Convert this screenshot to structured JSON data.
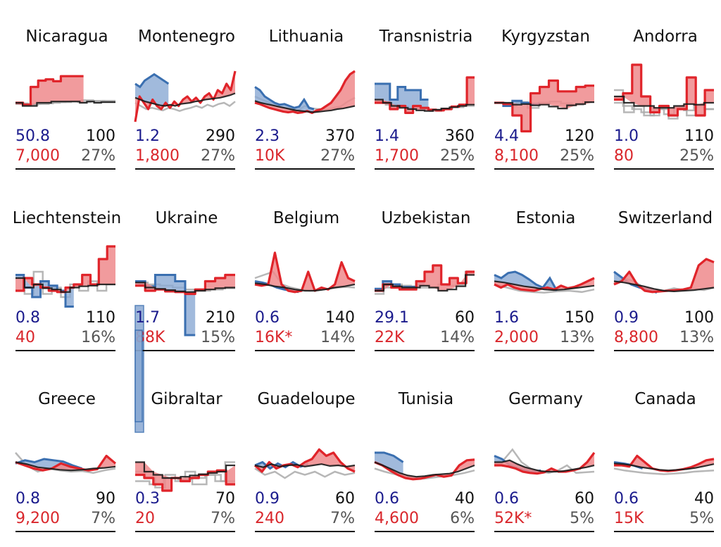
{
  "colors": {
    "blue": "#3a6fb0",
    "blue_fill": "#8aa9d3",
    "red": "#e0242a",
    "red_fill": "#ee8a8c",
    "black": "#1a1a1a",
    "gray": "#aaaaaa",
    "blue_text": "#1a1a8c",
    "red_text": "#d9262b",
    "pct_text": "#555555"
  },
  "chart_data": {
    "type": "small-multiples-line",
    "title": "",
    "panels": [
      {
        "name": "Nicaragua",
        "blue_value": "50.8",
        "black_value": "100",
        "red_value": "7,000",
        "pct": "27%",
        "style": "step",
        "red": [
          0,
          -0.3,
          2.5,
          3.5,
          3.7,
          3.4,
          4.2,
          4.2,
          4.2
        ],
        "black": [
          0,
          -0.5,
          -0.5,
          0,
          0,
          0.2,
          0.2,
          0.2,
          0.2,
          0,
          0.2,
          0,
          0.1,
          0.1
        ],
        "blue": [],
        "gray": [
          [
            -0.2,
            -0.3,
            -0.2,
            0,
            0.1,
            0.3,
            0.4,
            0.3,
            0.2
          ],
          [
            -0.1,
            -0.2,
            -0.1,
            0.1,
            0.2,
            0.1,
            0.2,
            0.3
          ]
        ]
      },
      {
        "name": "Montenegro",
        "blue_value": "1.2",
        "black_value": "290",
        "red_value": "1,800",
        "pct": "27%",
        "style": "line",
        "red": [
          -3,
          1,
          0,
          -1,
          0.5,
          -0.5,
          -1,
          0,
          -0.8,
          0.2,
          -0.5,
          0.5,
          1,
          0.2,
          0.8,
          0,
          1,
          1.5,
          0.5,
          2,
          1.5,
          3,
          2,
          5
        ],
        "black": [
          0.8,
          0.5,
          0.2,
          0,
          -0.2,
          -0.4,
          -0.5,
          -0.3,
          -0.5,
          -0.2,
          -0.1,
          0,
          0.2,
          0.3,
          0.5,
          0.6,
          0.7,
          0.8,
          1,
          1.2,
          1.5
        ],
        "blue": [
          3,
          2.5,
          3.5,
          4,
          4.5,
          4,
          3.5,
          3
        ],
        "gray": [
          [
            0,
            -0.5,
            -1,
            -0.8,
            -1,
            -1.2,
            -0.8,
            -1,
            -1.3,
            -1,
            -0.8,
            -0.5,
            -0.8,
            -0.3,
            -0.6,
            -0.2,
            0,
            -0.5,
            0.2
          ]
        ]
      },
      {
        "name": "Lithuania",
        "blue_value": "2.3",
        "black_value": "370",
        "red_value": "10K",
        "pct": "27%",
        "style": "line",
        "red": [
          0,
          -0.2,
          -0.5,
          -0.8,
          -1,
          -1.2,
          -1.4,
          -1.5,
          -1.4,
          -1.6,
          -1.5,
          -1.3,
          -1.6,
          -1.2,
          -1,
          -0.5,
          0,
          1,
          2,
          3.5,
          4.5,
          5
        ],
        "black": [
          0.3,
          0,
          -0.2,
          -0.4,
          -0.6,
          -0.8,
          -1,
          -1.2,
          -1.3,
          -1.4,
          -1.5,
          -1.4,
          -1.3,
          -1.2,
          -1,
          -0.9,
          -0.7,
          -0.5
        ],
        "blue": [
          2.5,
          2,
          1,
          0.5,
          0,
          -0.3,
          -0.2,
          -0.5,
          -0.8,
          -0.6,
          0.5,
          -0.8,
          -1
        ],
        "gray": [
          [
            1,
            0.5,
            0,
            -0.5,
            -0.8,
            -1,
            -1.2,
            -0.5,
            -0.9,
            -1,
            -1.1,
            -0.8,
            -0.6,
            0.2,
            0.8
          ]
        ]
      },
      {
        "name": "Transnistria",
        "blue_value": "1.4",
        "black_value": "360",
        "red_value": "1,700",
        "pct": "25%",
        "style": "step",
        "red": [
          0,
          0,
          -1,
          -0.5,
          -1.6,
          -0.5,
          -0.8,
          -1.1,
          -1.2,
          -1,
          -0.6,
          -0.3,
          4
        ],
        "black": [
          0.5,
          0,
          -0.5,
          -0.8,
          -1,
          -1.2,
          -1.3,
          -1.1,
          -0.9,
          -0.7,
          -0.5,
          -0.3
        ],
        "blue": [
          3,
          3,
          0.5,
          2.5,
          2,
          2,
          0.5
        ],
        "gray": [
          [
            0.2,
            -0.3,
            -0.6,
            -0.8,
            -1.1,
            -1.3,
            -0.9,
            -0.7,
            -0.5
          ]
        ]
      },
      {
        "name": "Kyrgyzstan",
        "blue_value": "4.4",
        "black_value": "120",
        "red_value": "8,100",
        "pct": "25%",
        "style": "step",
        "red": [
          0,
          -0.2,
          -2,
          -4.5,
          1.5,
          2.5,
          3.5,
          1.8,
          1.8,
          2.5,
          2.7
        ],
        "black": [
          0,
          0,
          -0.3,
          -0.2,
          -0.4,
          -0.3,
          -0.6,
          -0.9,
          -0.4,
          -0.2,
          0.1
        ],
        "blue": [
          0,
          -0.5,
          0.3,
          0,
          -0.2
        ],
        "gray": [
          [
            0,
            -0.5,
            0.1,
            -0.8,
            0,
            0.2,
            -0.1,
            -0.3,
            0.2
          ]
        ]
      },
      {
        "name": "Andorra",
        "blue_value": "1.0",
        "black_value": "110",
        "red_value": "80",
        "pct": "25%",
        "style": "step",
        "red": [
          0.5,
          1.5,
          6,
          1,
          -1.5,
          -0.5,
          -2,
          -1,
          4,
          -2,
          2
        ],
        "black": [
          1,
          0,
          -0.5,
          -0.5,
          -0.8,
          -0.8,
          -0.5,
          -0.2,
          -0.3,
          0
        ],
        "blue": [],
        "gray": [
          [
            2,
            -0.5,
            -1,
            -1.5,
            -2,
            -1,
            -2.5,
            -1,
            -2,
            -0.5,
            -1
          ],
          [
            0,
            -1.5,
            -0.5,
            -2,
            -1,
            -1.8,
            -0.8,
            -1.2,
            -0.5,
            -1
          ]
        ]
      },
      {
        "name": "Liechtenstein",
        "blue_value": "0.8",
        "black_value": "110",
        "red_value": "40",
        "pct": "16%",
        "style": "step",
        "red": [
          -1,
          1,
          0,
          -0.5,
          -1,
          -1.2,
          -0.5,
          0,
          1.5,
          0,
          4,
          6
        ],
        "black": [
          1,
          -0.5,
          0,
          -0.6,
          -0.8,
          -1.2,
          -0.5,
          -0.3,
          -0.2,
          0,
          0
        ],
        "blue": [
          1.5,
          -0.5,
          -2,
          0.5,
          -0.2,
          -1,
          -3.5
        ],
        "gray": [
          [
            1,
            -1.5,
            2,
            -1.5,
            -0.5,
            -2,
            0,
            -1,
            0.5,
            -1,
            0
          ]
        ]
      },
      {
        "name": "Ukraine",
        "blue_value": "1.7",
        "black_value": "210",
        "red_value": "88K",
        "pct": "15%",
        "style": "step",
        "red": [
          -0.2,
          -1,
          -0.8,
          -1.1,
          -1.2,
          -1.5,
          -0.8,
          0.5,
          1,
          1.5
        ],
        "black": [
          0.3,
          -0.5,
          -0.7,
          -0.9,
          -1.1,
          -1.2,
          -1,
          -0.8,
          -0.6,
          -0.5
        ],
        "blue": [
          0.5,
          -0.3,
          1.5,
          1.5,
          0.5,
          -8
        ],
        "gray": [
          [
            0.3,
            0,
            -0.2,
            -0.5,
            -0.8,
            -1,
            -0.8,
            -0.6
          ]
        ]
      },
      {
        "name": "Belgium",
        "blue_value": "0.6",
        "black_value": "140",
        "red_value": "16K*",
        "pct": "14%",
        "style": "line",
        "red": [
          0,
          -0.2,
          0,
          5,
          0,
          -1,
          -1.2,
          -1,
          2,
          -1,
          -0.5,
          -0.8,
          0,
          3.5,
          1,
          0.5
        ],
        "black": [
          0.2,
          0,
          -0.3,
          -0.5,
          -0.8,
          -1,
          -1,
          -0.8,
          -0.5,
          -0.3,
          0
        ],
        "blue": [
          0.5,
          0.3,
          0,
          -0.5,
          -0.8,
          -1,
          -1.2
        ],
        "gray": [
          [
            1,
            1.5,
            2,
            0,
            -0.5,
            -0.8,
            -1,
            -0.9,
            -0.7,
            -0.5,
            -0.4,
            -0.5
          ]
        ]
      },
      {
        "name": "Uzbekistan",
        "blue_value": "29.1",
        "black_value": "60",
        "red_value": "22K",
        "pct": "14%",
        "style": "step",
        "red": [
          -1,
          0,
          -0.5,
          -0.8,
          -0.8,
          0.5,
          2,
          3,
          0,
          1,
          0.2,
          2
        ],
        "black": [
          -1,
          0,
          -0.3,
          -0.5,
          -0.5,
          -0.2,
          -0.5,
          -1,
          -0.8,
          -0.3,
          1.5
        ],
        "blue": [
          -0.7,
          0.5,
          0,
          -0.4,
          -0.4,
          0.5
        ],
        "gray": [
          [
            -1.5,
            -0.5,
            0,
            -0.2,
            -0.3,
            -0.5,
            -0.4,
            0,
            -0.2,
            -0.1,
            2
          ]
        ]
      },
      {
        "name": "Estonia",
        "blue_value": "1.6",
        "black_value": "150",
        "red_value": "2,000",
        "pct": "13%",
        "style": "line",
        "red": [
          0,
          -0.5,
          0,
          -0.5,
          -0.8,
          -0.9,
          -1,
          -0.7,
          -0.5,
          -0.8,
          -0.2,
          -0.6,
          -0.4,
          0,
          0.5,
          1
        ],
        "black": [
          0.5,
          0.3,
          0,
          -0.3,
          -0.5,
          -0.8,
          -0.9,
          -0.8,
          -0.6,
          -0.4,
          -0.2
        ],
        "blue": [
          1.5,
          1,
          1.8,
          2,
          1.5,
          0.8,
          0,
          -0.5,
          1,
          -1
        ],
        "gray": [
          [
            0,
            -0.5,
            -1,
            -1.2,
            -1.3,
            -1.1,
            -1,
            -1.2,
            -0.8
          ]
        ]
      },
      {
        "name": "Switzerland",
        "blue_value": "0.9",
        "black_value": "100",
        "red_value": "8,800",
        "pct": "13%",
        "style": "line",
        "red": [
          0,
          0.5,
          2,
          0,
          -1,
          -1.2,
          -1.1,
          -1,
          -0.9,
          -0.8,
          -0.5,
          3,
          4,
          3.5
        ],
        "black": [
          0.5,
          0.3,
          0,
          -0.3,
          -0.7,
          -1,
          -1.1,
          -1,
          -0.9,
          -0.7,
          -0.5
        ],
        "blue": [
          2,
          1,
          0,
          -0.5,
          -0.8,
          -1.3
        ],
        "gray": [
          [
            0,
            1,
            0.5,
            -0.5,
            -0.8,
            -1,
            -0.6,
            -0.9,
            -0.7,
            -0.9,
            -0.5
          ]
        ]
      },
      {
        "name": "Greece",
        "blue_value": "0.8",
        "black_value": "90",
        "red_value": "9,200",
        "pct": "7%",
        "style": "line",
        "red": [
          0.5,
          0,
          -0.5,
          -0.8,
          -0.5,
          0.3,
          -0.2,
          -0.5,
          -0.8,
          -0.6,
          1.5,
          0.3
        ],
        "black": [
          0.5,
          0.2,
          -0.3,
          -0.5,
          -0.7,
          -0.8,
          -0.7,
          -0.5,
          -0.4,
          -0.2
        ],
        "blue": [
          0.3,
          0.8,
          0.5,
          1,
          0.8,
          0.6,
          0,
          -0.5
        ],
        "gray": [
          [
            2,
            0,
            -1,
            -0.5,
            -0.8,
            -1,
            -0.9,
            -1.2,
            -0.8,
            -0.5
          ]
        ]
      },
      {
        "name": "Gibraltar",
        "blue_value": "0.3",
        "black_value": "70",
        "red_value": "20",
        "pct": "7%",
        "style": "step",
        "red": [
          -1.5,
          -2,
          -3,
          -4,
          -2,
          -2.5,
          -2,
          -1.5,
          -1,
          -0.8,
          -3
        ],
        "black": [
          0.5,
          -1,
          -1.5,
          -2,
          -2,
          -1.8,
          -1.6,
          -1.4,
          -1.2,
          -1,
          0
        ],
        "blue": [
          8
        ],
        "gray": [
          [
            -1,
            -2,
            -3.5,
            -1.5,
            -2.5,
            -1,
            -2,
            -1.5,
            -2.5,
            0.5
          ],
          [
            -2.5,
            -3,
            -2,
            -2.2,
            -3,
            -1.5,
            -2.5
          ]
        ]
      },
      {
        "name": "Guadeloupe",
        "blue_value": "0.9",
        "black_value": "60",
        "red_value": "240",
        "pct": "7%",
        "style": "line",
        "red": [
          0,
          -1,
          0.5,
          -0.5,
          0,
          0.2,
          -0.3,
          0.5,
          1,
          2.5,
          1.5,
          2,
          0.5,
          -0.5,
          -1
        ],
        "black": [
          0,
          -0.3,
          0.2,
          -0.2,
          0,
          0.1,
          -0.2,
          0,
          0.2,
          -0.1,
          0,
          -0.2,
          0
        ],
        "blue": [
          0,
          0.5,
          -0.5,
          0.3,
          -0.3,
          0.5,
          -0.2,
          0.2
        ],
        "gray": [
          [
            -0.5,
            -1.5,
            -1,
            -2,
            -1,
            -1.5,
            -1,
            -1.8,
            -1,
            -1.5,
            -1.2
          ]
        ]
      },
      {
        "name": "Tunisia",
        "blue_value": "0.6",
        "black_value": "40",
        "red_value": "4,600",
        "pct": "6%",
        "style": "line",
        "red": [
          0.5,
          0,
          -0.8,
          -1.5,
          -2,
          -2.2,
          -2.1,
          -1.8,
          -1.5,
          -1.8,
          -1.6,
          0,
          0.8,
          0.9
        ],
        "black": [
          0.5,
          0,
          -0.6,
          -1.2,
          -1.6,
          -1.8,
          -1.7,
          -1.5,
          -1.4,
          -1.3,
          -1,
          -0.5,
          0
        ],
        "blue": [
          2,
          2,
          1.5,
          0.5
        ],
        "gray": [
          [
            -0.5,
            -1,
            -1.4,
            -1.8,
            -2,
            -2.1,
            -1.9,
            -1.7,
            -1.5,
            -1.2,
            -0.8
          ]
        ]
      },
      {
        "name": "Germany",
        "blue_value": "0.6",
        "black_value": "60",
        "red_value": "52K*",
        "pct": "5%",
        "style": "line",
        "red": [
          0,
          0,
          -0.2,
          -0.5,
          -1,
          -1.2,
          -1.3,
          -1.1,
          -0.5,
          -1,
          -1,
          -0.8,
          -0.5,
          0.5,
          2
        ],
        "black": [
          0.5,
          0.5,
          0.8,
          0.2,
          -0.3,
          -0.6,
          -0.9,
          -1,
          -1,
          -0.9,
          -0.7,
          -0.5,
          -0.3,
          0
        ],
        "blue": [
          1.5,
          1,
          0,
          -0.5,
          -0.8,
          -1,
          -0.8
        ],
        "gray": [
          [
            0.5,
            0.8,
            2.5,
            0.5,
            -0.5,
            -1,
            -1.2,
            -0.8,
            0,
            -1.2,
            -1.1,
            -1
          ]
        ]
      },
      {
        "name": "Canada",
        "blue_value": "0.6",
        "black_value": "40",
        "red_value": "15K",
        "pct": "5%",
        "style": "line",
        "red": [
          0,
          0,
          -0.2,
          1.5,
          0.5,
          -0.5,
          -0.8,
          -0.9,
          -0.8,
          -0.6,
          -0.3,
          0.2,
          0.8,
          1
        ],
        "black": [
          0.3,
          0.2,
          0,
          -0.3,
          -0.5,
          -0.7,
          -0.8,
          -0.7,
          -0.6,
          -0.4,
          -0.1,
          0.2
        ],
        "blue": [
          0.5,
          0.3,
          0,
          -0.5
        ],
        "gray": [
          [
            -0.5,
            -0.8,
            -1,
            -1.2,
            -1.3,
            -1.4,
            -1.3,
            -1.2,
            -1,
            -0.9,
            -0.8
          ]
        ]
      }
    ]
  }
}
